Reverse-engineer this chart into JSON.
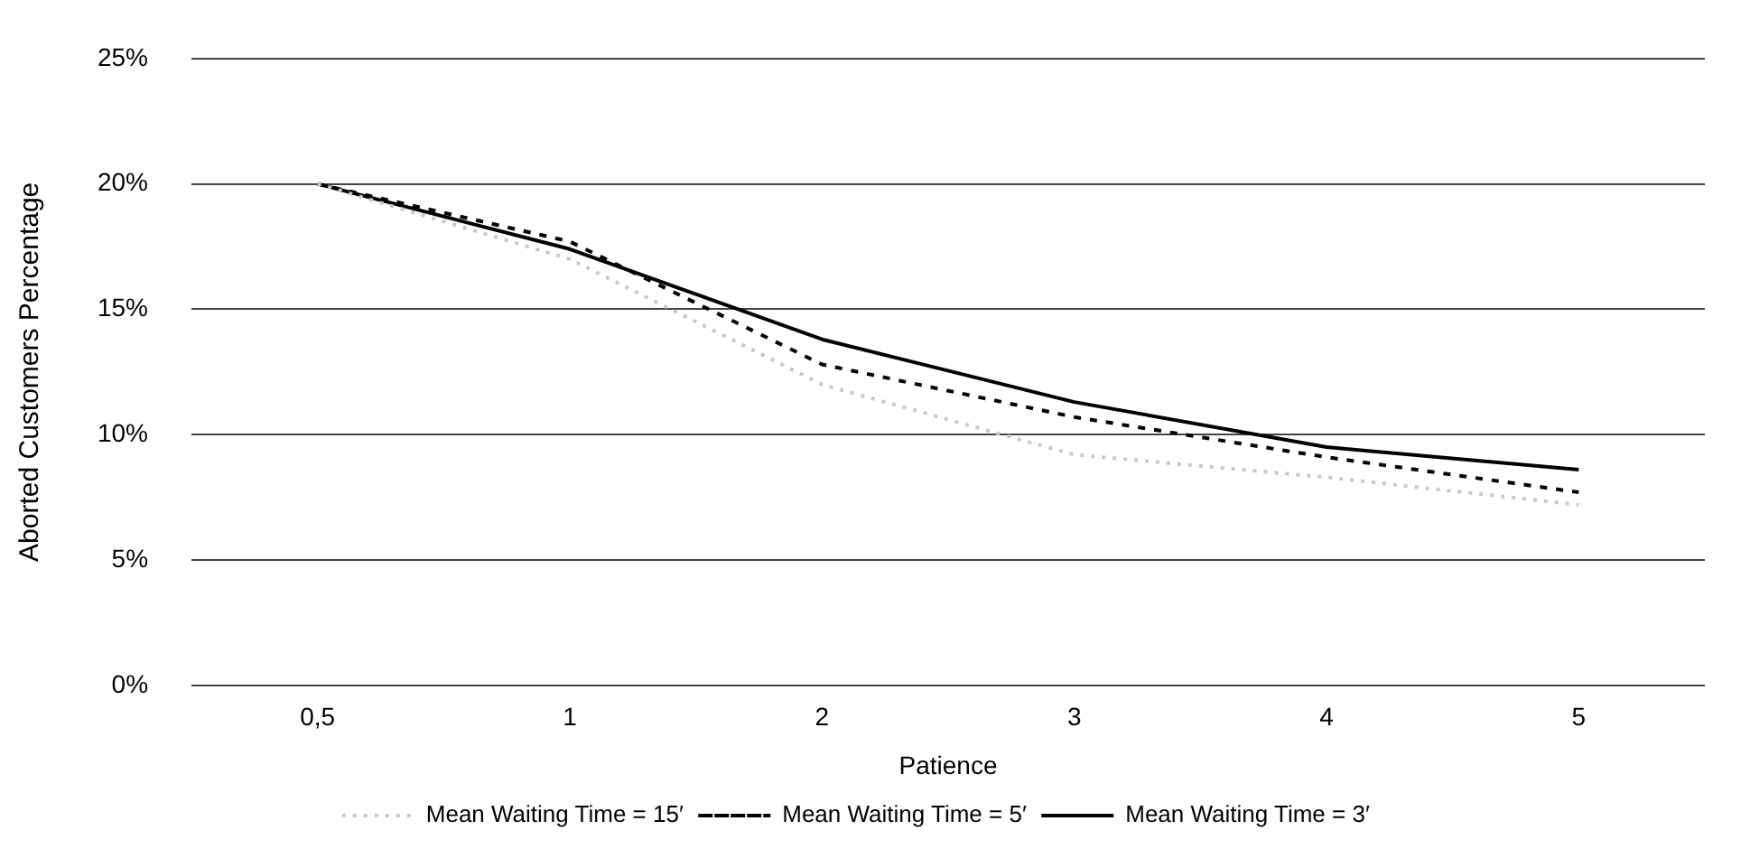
{
  "chart_data": {
    "type": "line",
    "xlabel": "Patience",
    "ylabel": "Aborted Customers Percentage",
    "categories": [
      "0,5",
      "1",
      "2",
      "3",
      "4",
      "5"
    ],
    "series": [
      {
        "name": "Mean Waiting Time = 15′",
        "color": "#c8c8c8",
        "line_style": "dotted",
        "values": [
          20,
          17.0,
          12.0,
          9.2,
          8.3,
          7.2
        ]
      },
      {
        "name": "Mean Waiting Time = 5′",
        "color": "#000000",
        "line_style": "dashed",
        "values": [
          20,
          17.7,
          12.8,
          10.7,
          9.1,
          7.7
        ]
      },
      {
        "name": "Mean Waiting Time = 3′",
        "color": "#000000",
        "line_style": "solid",
        "values": [
          20,
          17.4,
          13.8,
          11.3,
          9.5,
          8.6
        ]
      }
    ],
    "ylim": [
      0,
      25
    ],
    "yticks": [
      {
        "value": 0,
        "label": "0%"
      },
      {
        "value": 5,
        "label": "5%"
      },
      {
        "value": 10,
        "label": "10%"
      },
      {
        "value": 15,
        "label": "15%"
      },
      {
        "value": 20,
        "label": "20%"
      },
      {
        "value": 25,
        "label": "25%"
      }
    ],
    "grid": "y",
    "legend": "bottom",
    "marker": "none"
  }
}
